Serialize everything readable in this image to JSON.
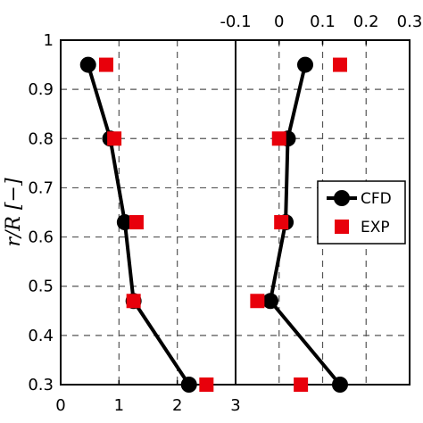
{
  "chart_data": [
    {
      "type": "line",
      "panel": "left",
      "xlabel": "",
      "ylabel": "r/R [−]",
      "xlim": [
        0,
        3
      ],
      "ylim": [
        0.3,
        1.0
      ],
      "xticks": [
        "0",
        "1",
        "2",
        "3"
      ],
      "yticks": [
        "0.3",
        "0.4",
        "0.5",
        "0.6",
        "0.7",
        "0.8",
        "0.9",
        "1"
      ],
      "grid": true,
      "series": [
        {
          "name": "CFD",
          "style": "line-circle",
          "color": "#000000",
          "points": [
            [
              0.47,
              0.95
            ],
            [
              0.85,
              0.8
            ],
            [
              1.1,
              0.63
            ],
            [
              1.25,
              0.47
            ],
            [
              2.2,
              0.3
            ]
          ]
        },
        {
          "name": "EXP",
          "style": "square",
          "color": "#e8000b",
          "points": [
            [
              0.78,
              0.95
            ],
            [
              0.92,
              0.8
            ],
            [
              1.3,
              0.63
            ],
            [
              1.25,
              0.47
            ],
            [
              2.5,
              0.3
            ]
          ]
        }
      ]
    },
    {
      "type": "line",
      "panel": "right",
      "xlabel": "",
      "xlim": [
        -0.1,
        0.3
      ],
      "ylim": [
        0.3,
        1.0
      ],
      "xticks": [
        "-0.1",
        "0",
        "0.1",
        "0.2",
        "0.3"
      ],
      "grid": true,
      "legend": {
        "position": "right",
        "entries": [
          "CFD",
          "EXP"
        ]
      },
      "series": [
        {
          "name": "CFD",
          "style": "line-circle",
          "color": "#000000",
          "points": [
            [
              0.06,
              0.95
            ],
            [
              0.02,
              0.8
            ],
            [
              0.015,
              0.63
            ],
            [
              -0.02,
              0.47
            ],
            [
              0.14,
              0.3
            ]
          ]
        },
        {
          "name": "EXP",
          "style": "square",
          "color": "#e8000b",
          "points": [
            [
              0.14,
              0.95
            ],
            [
              0.0,
              0.8
            ],
            [
              0.005,
              0.63
            ],
            [
              -0.05,
              0.47
            ],
            [
              0.05,
              0.3
            ]
          ]
        }
      ]
    }
  ]
}
